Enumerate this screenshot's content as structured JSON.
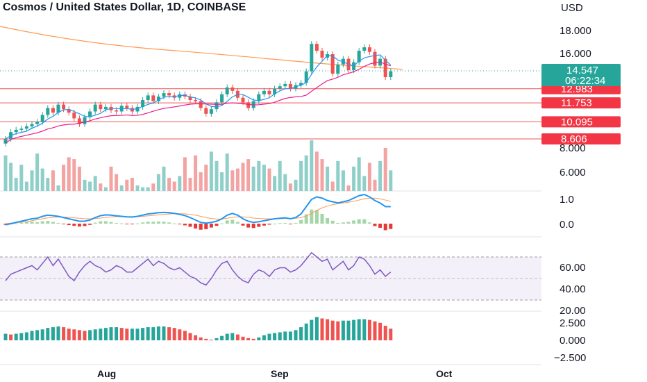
{
  "header": {
    "title": "Cosmos / United States Dollar, 1D, COINBASE",
    "currency": "USD"
  },
  "colors": {
    "up": "#26a69a",
    "down": "#ef5350",
    "vol_up": "#8fcfc9",
    "vol_down": "#f3a3a1",
    "ma_fast": "#2196f3",
    "ma_slow": "#e91e8c",
    "ma_long": "#ff9850",
    "macd": "#2196f3",
    "signal": "#ff9850",
    "rsi": "#7e57c2"
  },
  "price_axis": {
    "ticks": [
      "18.000",
      "16.000"
    ]
  },
  "volume_axis": {
    "ticks": [
      "8.000",
      "6.000"
    ]
  },
  "macd_axis": {
    "ticks": [
      "1.0",
      "0.0"
    ]
  },
  "rsi_axis": {
    "ticks": [
      "60.00",
      "40.00",
      "20.00"
    ]
  },
  "osc_axis": {
    "ticks": [
      "2.500",
      "0.000",
      "−2.500"
    ]
  },
  "x_axis": {
    "labels": [
      "Aug",
      "Sep",
      "Oct"
    ]
  },
  "last_price": {
    "value": "14.547",
    "countdown": "06:22:34"
  },
  "levels": [
    {
      "value": 12.983,
      "label": "12.983"
    },
    {
      "value": 11.753,
      "label": "11.753"
    },
    {
      "value": 10.095,
      "label": "10.095"
    },
    {
      "value": 8.606,
      "label": "8.606"
    }
  ],
  "chart_data": {
    "type": "candlestick",
    "close": [
      8.6,
      9.2,
      9.4,
      9.5,
      9.7,
      9.9,
      10.1,
      10.7,
      11.3,
      10.9,
      11.6,
      11.2,
      10.9,
      10.4,
      9.9,
      10.5,
      11.0,
      11.6,
      11.2,
      11.4,
      11.1,
      11.0,
      11.5,
      11.3,
      11.0,
      11.4,
      12.0,
      12.4,
      11.9,
      12.3,
      12.6,
      12.4,
      12.2,
      12.5,
      12.3,
      12.0,
      11.9,
      11.3,
      10.8,
      11.2,
      11.8,
      12.5,
      13.1,
      12.8,
      12.2,
      11.8,
      11.3,
      11.9,
      12.5,
      12.8,
      12.5,
      13.0,
      13.2,
      13.4,
      13.0,
      13.3,
      13.5,
      14.5,
      16.9,
      16.3,
      15.7,
      16.0,
      14.3,
      15.1,
      15.6,
      14.6,
      15.3,
      16.3,
      16.6,
      16.2,
      15.0,
      15.6,
      14.0,
      14.5
    ],
    "volume": [
      7.2,
      6.8,
      6.0,
      6.7,
      5.8,
      6.4,
      7.3,
      6.5,
      6.0,
      6.4,
      5.6,
      6.7,
      7.1,
      7.0,
      6.6,
      5.9,
      5.8,
      6.1,
      5.7,
      5.5,
      6.6,
      6.2,
      5.6,
      5.9,
      6.0,
      5.6,
      5.5,
      5.5,
      5.7,
      6.2,
      6.6,
      6.0,
      5.8,
      6.1,
      7.1,
      6.0,
      7.2,
      6.3,
      6.7,
      7.4,
      6.9,
      6.3,
      7.3,
      6.4,
      6.5,
      6.8,
      7.0,
      6.6,
      6.9,
      6.7,
      6.5,
      6.1,
      6.9,
      6.2,
      5.7,
      5.9,
      6.9,
      7.2,
      8.0,
      7.4,
      7.0,
      6.6,
      5.8,
      6.9,
      6.4,
      5.6,
      6.6,
      7.1,
      6.1,
      6.8,
      5.9,
      6.9,
      7.6,
      6.4
    ],
    "macd": [
      -0.05,
      0.0,
      0.05,
      0.1,
      0.15,
      0.2,
      0.22,
      0.3,
      0.35,
      0.33,
      0.3,
      0.25,
      0.2,
      0.15,
      0.1,
      0.1,
      0.15,
      0.25,
      0.33,
      0.36,
      0.35,
      0.32,
      0.3,
      0.28,
      0.27,
      0.3,
      0.35,
      0.4,
      0.42,
      0.45,
      0.46,
      0.45,
      0.42,
      0.38,
      0.33,
      0.25,
      0.15,
      0.05,
      0.02,
      0.05,
      0.1,
      0.2,
      0.35,
      0.42,
      0.35,
      0.2,
      0.1,
      0.05,
      0.08,
      0.12,
      0.16,
      0.2,
      0.22,
      0.24,
      0.2,
      0.25,
      0.4,
      0.7,
      1.0,
      1.1,
      1.05,
      0.95,
      0.9,
      0.85,
      0.9,
      0.95,
      1.05,
      1.15,
      1.2,
      1.1,
      0.95,
      0.85,
      0.7,
      0.7
    ],
    "signal": [
      0.0,
      0.02,
      0.04,
      0.06,
      0.08,
      0.12,
      0.16,
      0.2,
      0.24,
      0.26,
      0.27,
      0.27,
      0.26,
      0.24,
      0.22,
      0.2,
      0.2,
      0.21,
      0.23,
      0.26,
      0.28,
      0.29,
      0.29,
      0.29,
      0.29,
      0.29,
      0.3,
      0.32,
      0.34,
      0.36,
      0.38,
      0.4,
      0.41,
      0.41,
      0.4,
      0.38,
      0.35,
      0.3,
      0.25,
      0.21,
      0.19,
      0.19,
      0.22,
      0.26,
      0.28,
      0.28,
      0.26,
      0.23,
      0.21,
      0.2,
      0.2,
      0.2,
      0.2,
      0.21,
      0.21,
      0.22,
      0.25,
      0.32,
      0.42,
      0.55,
      0.65,
      0.72,
      0.78,
      0.82,
      0.85,
      0.88,
      0.92,
      0.97,
      1.02,
      1.05,
      1.05,
      1.02,
      0.97,
      0.92
    ],
    "rsi": [
      48,
      54,
      56,
      58,
      60,
      62,
      58,
      64,
      70,
      62,
      68,
      60,
      52,
      48,
      56,
      62,
      66,
      62,
      60,
      56,
      58,
      62,
      60,
      56,
      56,
      60,
      64,
      68,
      62,
      66,
      64,
      60,
      58,
      60,
      56,
      52,
      50,
      46,
      44,
      50,
      58,
      64,
      66,
      58,
      52,
      48,
      46,
      54,
      58,
      56,
      52,
      58,
      60,
      60,
      56,
      58,
      62,
      68,
      74,
      70,
      66,
      68,
      58,
      62,
      66,
      58,
      62,
      70,
      68,
      62,
      54,
      58,
      52,
      56
    ],
    "osc": [
      0.9,
      0.8,
      0.9,
      1.0,
      1.1,
      1.3,
      1.4,
      1.5,
      1.7,
      1.8,
      1.9,
      1.8,
      1.6,
      1.5,
      1.4,
      1.3,
      1.4,
      1.5,
      1.6,
      1.7,
      1.8,
      1.8,
      1.7,
      1.6,
      1.6,
      1.6,
      1.7,
      1.8,
      1.8,
      1.9,
      1.9,
      1.8,
      1.7,
      1.5,
      1.3,
      1.0,
      0.7,
      0.4,
      0.2,
      0.1,
      0.3,
      0.6,
      0.9,
      1.0,
      0.8,
      0.5,
      0.3,
      0.2,
      0.4,
      0.7,
      0.9,
      1.0,
      1.1,
      1.2,
      1.2,
      1.4,
      1.8,
      2.3,
      2.8,
      3.2,
      3.0,
      2.9,
      2.7,
      2.6,
      2.7,
      2.7,
      2.8,
      2.9,
      2.9,
      2.8,
      2.6,
      2.4,
      2.0,
      1.6
    ]
  }
}
